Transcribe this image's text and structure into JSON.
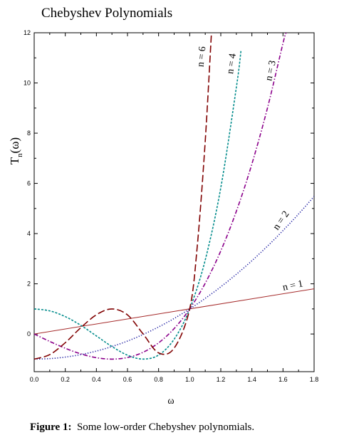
{
  "title": "Chebyshev Polynomials",
  "caption": {
    "lead": "Figure 1:",
    "text": "Some low-order Chebyshev polynomials."
  },
  "chart_data": {
    "type": "line",
    "title": "Chebyshev Polynomials",
    "xlabel": "ω",
    "ylabel_main": "T",
    "ylabel_sub": "n",
    "ylabel_arg": "(ω)",
    "xlim": [
      0,
      1.8
    ],
    "ylim": [
      -1.5,
      12
    ],
    "xticks": [
      "0.0",
      "0.2",
      "0.4",
      "0.6",
      "0.8",
      "1.0",
      "1.2",
      "1.4",
      "1.6",
      "1.8"
    ],
    "yticks": [
      "0",
      "2",
      "4",
      "6",
      "8",
      "10",
      "12"
    ],
    "grid": false,
    "series": [
      {
        "name": "n = 1",
        "color": "#a52a2a",
        "style": "solid",
        "x": [
          0,
          1.8
        ],
        "y": [
          0,
          1.8
        ]
      },
      {
        "name": "n = 2",
        "color": "#1a1aa0",
        "style": "dotted",
        "x": [
          0,
          0.1,
          0.2,
          0.3,
          0.4,
          0.5,
          0.6,
          0.7,
          0.8,
          0.9,
          1.0,
          1.1,
          1.2,
          1.3,
          1.4,
          1.5,
          1.6,
          1.7,
          1.8
        ],
        "y": [
          -1,
          -0.98,
          -0.92,
          -0.82,
          -0.68,
          -0.5,
          -0.28,
          -0.02,
          0.28,
          0.62,
          1,
          1.42,
          1.88,
          2.38,
          2.92,
          3.5,
          4.12,
          4.78,
          5.48
        ]
      },
      {
        "name": "n = 3",
        "color": "#8b008b",
        "style": "dashdot",
        "x": [
          0,
          0.1,
          0.2,
          0.3,
          0.4,
          0.5,
          0.6,
          0.7,
          0.8,
          0.9,
          1.0,
          1.1,
          1.2,
          1.3,
          1.4,
          1.5,
          1.6,
          1.62
        ],
        "y": [
          0,
          -0.296,
          -0.568,
          -0.792,
          -0.944,
          -1,
          -0.936,
          -0.728,
          -0.352,
          0.216,
          1,
          2.024,
          3.312,
          4.888,
          6.776,
          9,
          11.584,
          12
        ]
      },
      {
        "name": "n = 4",
        "color": "#008b8b",
        "style": "dashed",
        "x": [
          0,
          0.1,
          0.2,
          0.3,
          0.4,
          0.5,
          0.6,
          0.7,
          0.8,
          0.9,
          1.0,
          1.1,
          1.2,
          1.3,
          1.33
        ],
        "y": [
          1,
          0.921,
          0.693,
          0.345,
          -0.077,
          -0.5,
          -0.843,
          -0.999,
          -0.838,
          -0.206,
          1,
          2.953,
          5.829,
          9.817,
          11.3
        ]
      },
      {
        "name": "n = 6",
        "color": "#800000",
        "style": "longdash",
        "x": [
          0,
          0.1,
          0.2,
          0.3,
          0.4,
          0.5,
          0.6,
          0.7,
          0.8,
          0.9,
          1.0,
          1.05,
          1.1,
          1.14
        ],
        "y": [
          -1,
          -0.821,
          -0.345,
          0.253,
          0.767,
          1,
          0.759,
          0.005,
          -0.752,
          -0.564,
          1,
          3.6,
          7.7,
          12
        ]
      }
    ]
  }
}
